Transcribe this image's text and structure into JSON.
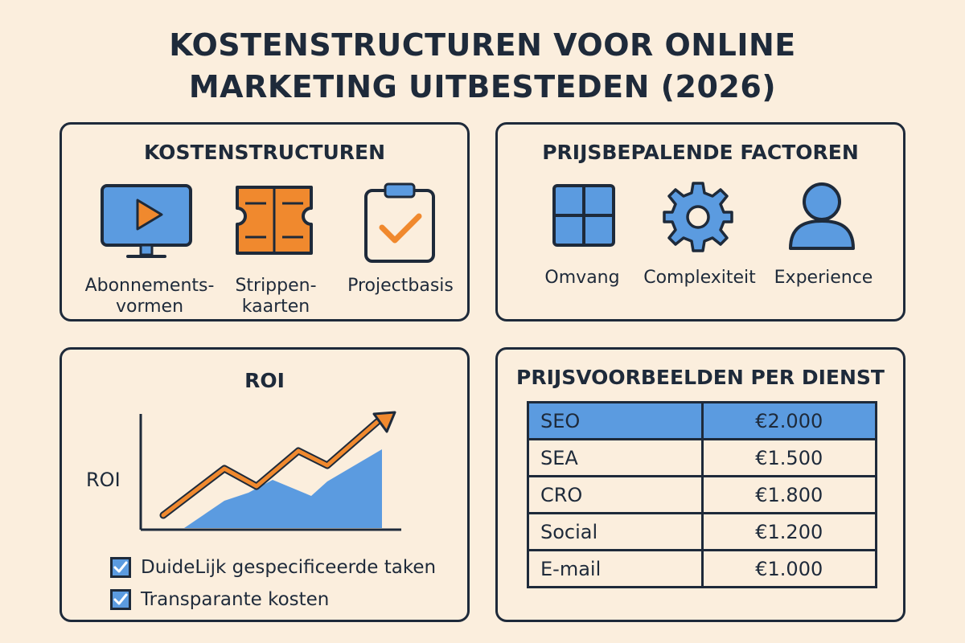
{
  "title_line1": "KOSTENSTRUCTUREN VOOR ONLINE",
  "title_line2": "MARKETING UITBESTEDEN (2026)",
  "kosten": {
    "heading": "KOSTENSTRUCTUREN",
    "items": [
      {
        "line1": "Abonnements-",
        "line2": "vormen",
        "icon": "monitor-play-icon"
      },
      {
        "line1": "Strippen-",
        "line2": "kaarten",
        "icon": "punch-card-icon"
      },
      {
        "line1": "Projectbasis",
        "line2": "",
        "icon": "clipboard-check-icon"
      }
    ]
  },
  "factoren": {
    "heading": "PRIJSBEPALENDE FACTOREN",
    "items": [
      {
        "label": "Omvang",
        "icon": "grid-icon"
      },
      {
        "label": "Complexiteit",
        "icon": "gear-icon"
      },
      {
        "label": "Experience",
        "icon": "person-icon"
      }
    ]
  },
  "roi": {
    "heading": "ROI",
    "axis_label": "ROI",
    "checks": [
      "DuideLijk gespecificeerde taken",
      "Transparante kosten"
    ]
  },
  "prijzen": {
    "heading": "PRIJSVOORBEELDEN PER DIENST",
    "rows": [
      {
        "service": "SEO",
        "price": "€2.000"
      },
      {
        "service": "SEA",
        "price": "€1.500"
      },
      {
        "service": "CRO",
        "price": "€1.800"
      },
      {
        "service": "Social",
        "price": "€1.200"
      },
      {
        "service": "E-mail",
        "price": "€1.000"
      }
    ]
  },
  "colors": {
    "background": "#fbeedd",
    "ink": "#1e2a3a",
    "blue": "#5b9be0",
    "orange": "#f0892e"
  }
}
